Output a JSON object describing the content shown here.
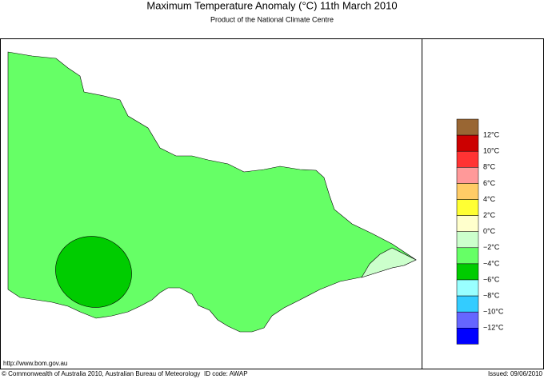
{
  "header": {
    "title": "Maximum Temperature Anomaly (°C)  11th March 2010",
    "subtitle": "Product of the National Climate Centre"
  },
  "legend": {
    "colors": [
      "#996633",
      "#cc0000",
      "#ff3333",
      "#ff9999",
      "#ffcc66",
      "#ffff33",
      "#ffffcc",
      "#ccffcc",
      "#66ff66",
      "#00cc00",
      "#99ffff",
      "#33ccff",
      "#6666ff",
      "#0000ff"
    ],
    "labels": [
      "12°C",
      "10°C",
      "8°C",
      "6°C",
      "4°C",
      "2°C",
      "0°C",
      "−2°C",
      "−4°C",
      "−6°C",
      "−8°C",
      "−10°C",
      "−12°C"
    ]
  },
  "footer": {
    "url": "http://www.bom.gov.au",
    "copyright": "© Commonwealth of Australia 2010, Australian Bureau of Meteorology",
    "id_code": "ID code: AWAP",
    "issued": "Issued: 09/06/2010"
  }
}
